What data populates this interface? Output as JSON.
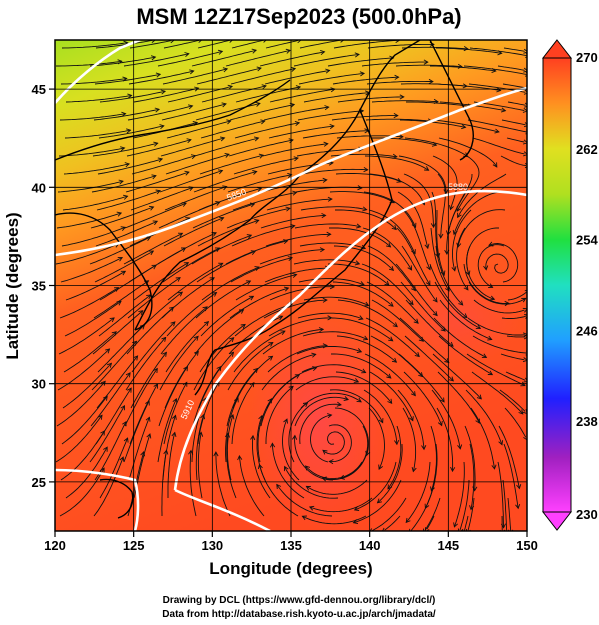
{
  "title": "MSM 12Z17Sep2023 (500.0hPa)",
  "xlabel": "Longitude (degrees)",
  "ylabel": "Latitude  (degrees)",
  "x_ticks": [
    "120",
    "125",
    "130",
    "135",
    "140",
    "145",
    "150"
  ],
  "y_ticks": [
    "25",
    "30",
    "35",
    "40",
    "45"
  ],
  "colorbar": {
    "min": 230,
    "max": 270,
    "tick_labels": [
      "270",
      "262",
      "254",
      "246",
      "238",
      "230"
    ],
    "colors": [
      "#ff40ff",
      "#a020c0",
      "#2020ff",
      "#20a0ff",
      "#20e0c0",
      "#20e040",
      "#b0e020",
      "#e0e020",
      "#ff9020",
      "#ff4020"
    ]
  },
  "contour_labels": [
    "5910",
    "5880",
    "5850"
  ],
  "credits": {
    "line1": "Drawing by DCL (https://www.gfd-dennou.org/library/dcl/)",
    "line2": "Data from http://database.rish.kyoto-u.ac.jp/arch/jmadata/"
  },
  "map_data": {
    "field": "temperature (K) with streamlines and geopotential height contours",
    "lon_range": [
      120,
      150
    ],
    "lat_range": [
      22.5,
      47.5
    ],
    "vortex_center": {
      "lon": 147.5,
      "lat": 35
    }
  }
}
